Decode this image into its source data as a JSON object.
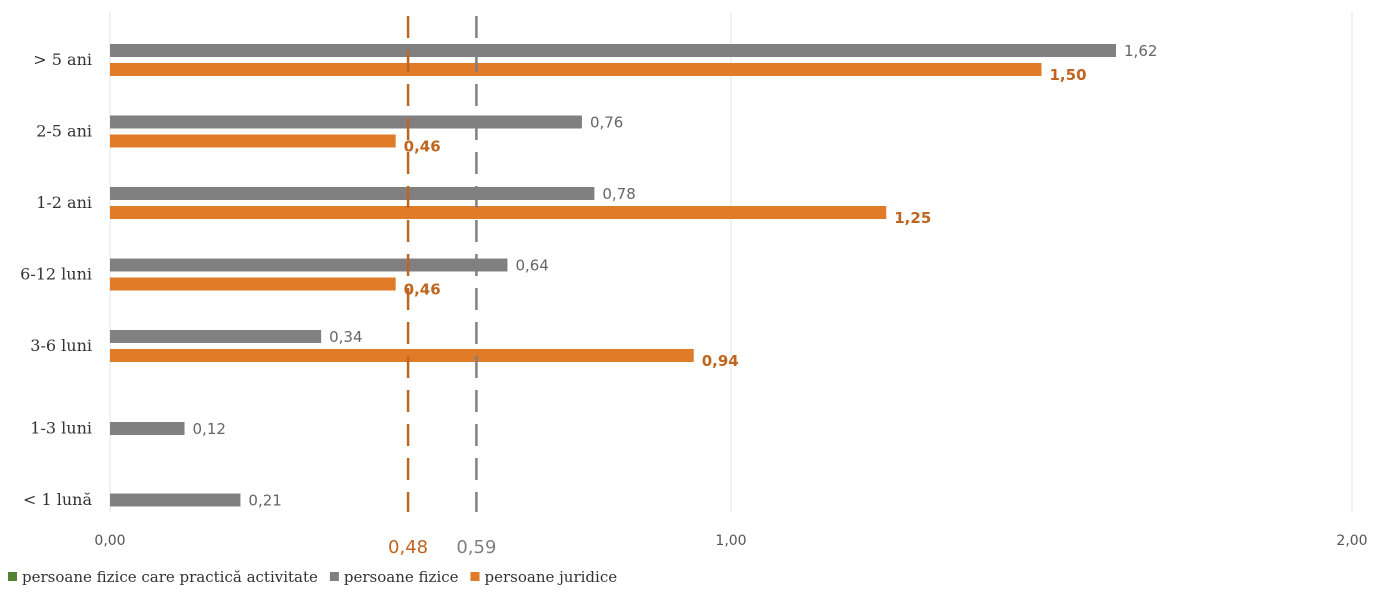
{
  "chart_data": {
    "type": "bar",
    "orientation": "horizontal",
    "categories": [
      "> 5 ani",
      "2-5 ani",
      "1-2 ani",
      "6-12 luni",
      "3-6 luni",
      "1-3 luni",
      "< 1 lună"
    ],
    "series": [
      {
        "name": "persoane fizice care practică activitate",
        "color": "#548235",
        "values": [
          null,
          null,
          null,
          null,
          null,
          null,
          null
        ]
      },
      {
        "name": "persoane fizice",
        "color": "#808080",
        "values": [
          1.62,
          0.76,
          0.78,
          0.64,
          0.34,
          0.12,
          0.21
        ]
      },
      {
        "name": "persoane juridice",
        "color": "#E07B28",
        "values": [
          1.5,
          0.46,
          1.25,
          0.46,
          0.94,
          null,
          null
        ]
      }
    ],
    "data_labels": {
      "persoane fizice": [
        "1,62",
        "0,76",
        "0,78",
        "0,64",
        "0,34",
        "0,12",
        "0,21"
      ],
      "persoane juridice": [
        "1,50",
        "0,46",
        "1,25",
        "0,46",
        "0,94",
        "",
        ""
      ]
    },
    "xlim": [
      0,
      2.0
    ],
    "xticks": [
      0,
      1.0,
      2.0
    ],
    "xtick_labels": [
      "0,00",
      "1,00",
      "2,00"
    ],
    "reference_lines": [
      {
        "value": 0.48,
        "label": "0,48",
        "color": "#C0651F",
        "style": "dashed"
      },
      {
        "value": 0.59,
        "label": "0,59",
        "color": "#808080",
        "style": "dashed"
      }
    ],
    "grid": "vertical",
    "legend_position": "bottom-left",
    "title": "",
    "xlabel": "",
    "ylabel": ""
  }
}
